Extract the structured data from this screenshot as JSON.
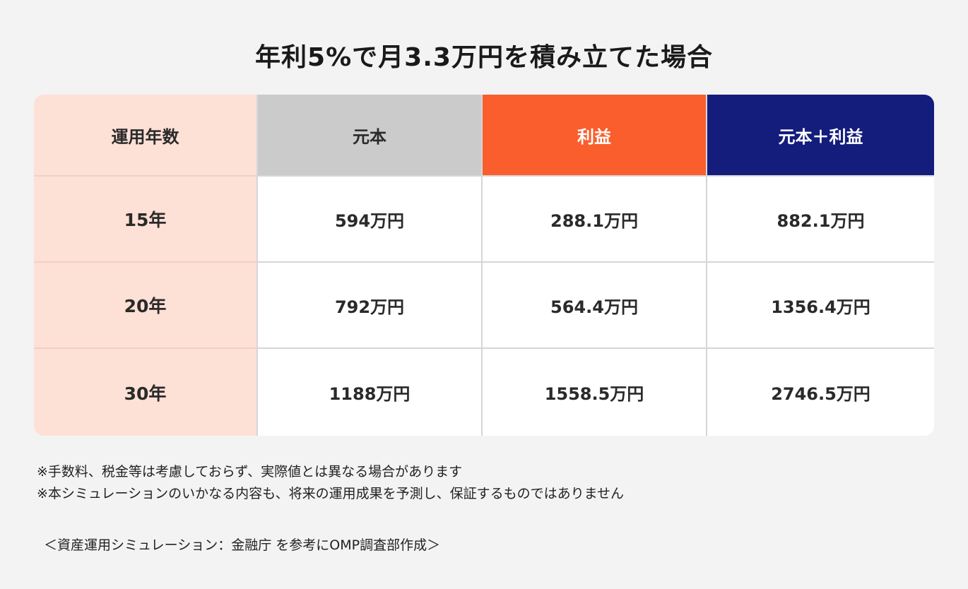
{
  "title": "年利5%で月3.3万円を積み立てた場合",
  "table": {
    "headers": {
      "years": "運用年数",
      "principal": "元本",
      "profit": "利益",
      "total": "元本＋利益"
    },
    "colors": {
      "years_bg": "#fde0d6",
      "principal_bg": "#cbcbcb",
      "profit_bg": "#f95e2c",
      "total_bg": "#141c7c"
    },
    "rows": [
      {
        "years": "15年",
        "principal": "594万円",
        "profit": "288.1万円",
        "total": "882.1万円"
      },
      {
        "years": "20年",
        "principal": "792万円",
        "profit": "564.4万円",
        "total": "1356.4万円"
      },
      {
        "years": "30年",
        "principal": "1188万円",
        "profit": "1558.5万円",
        "total": "2746.5万円"
      }
    ]
  },
  "notes": [
    "※手数料、税金等は考慮しておらず、実際値とは異なる場合があります",
    "※本シミュレーションのいかなる内容も、将来の運用成果を予測し、保証するものではありません"
  ],
  "source": "＜資産運用シミュレーション：金融庁 を参考にOMP調査部作成＞"
}
